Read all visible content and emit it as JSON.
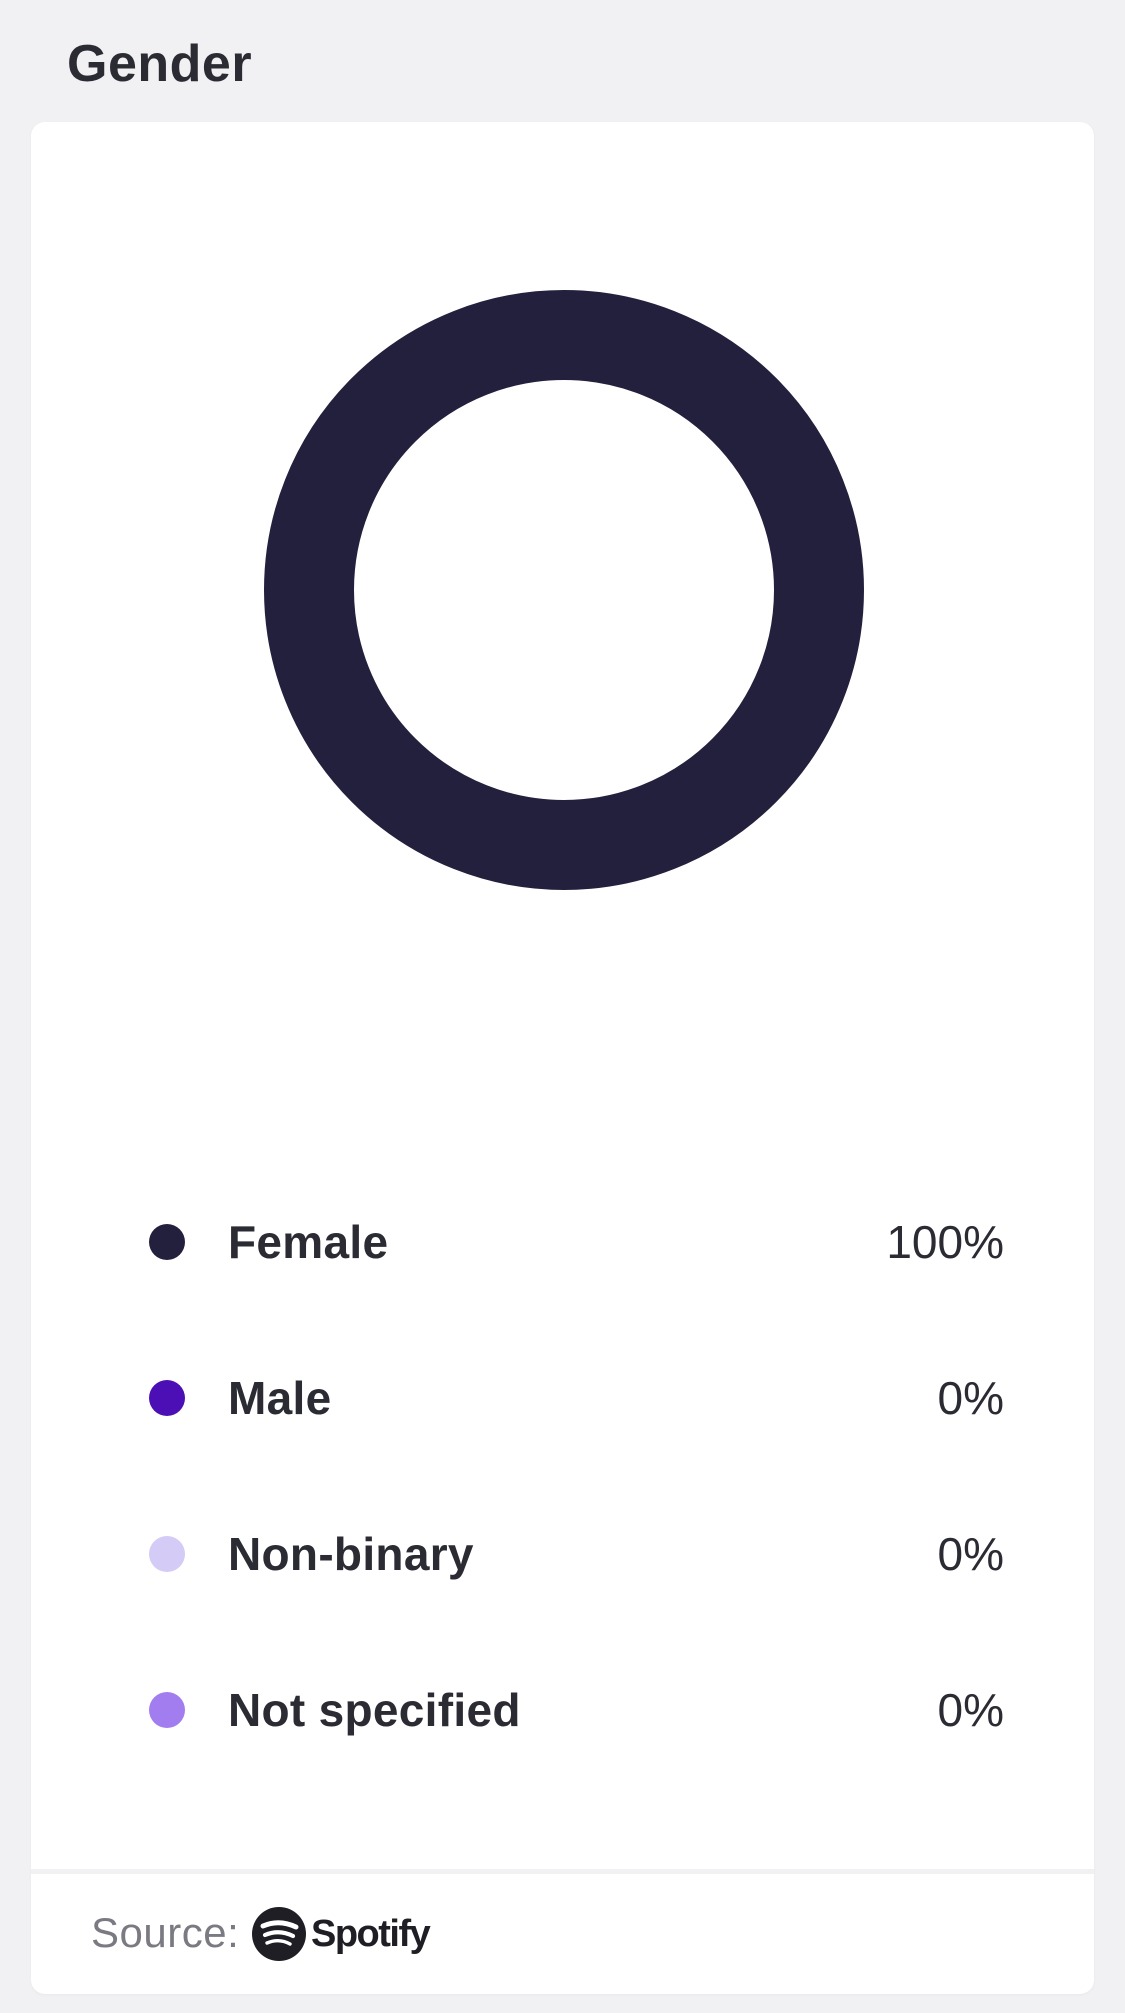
{
  "section": {
    "title": "Gender"
  },
  "chart_data": {
    "type": "pie",
    "categories": [
      "Female",
      "Male",
      "Non-binary",
      "Not specified"
    ],
    "values": [
      100,
      0,
      0,
      0
    ],
    "colors": [
      "#23203d",
      "#4b0fb5",
      "#d4cbf6",
      "#a27df0"
    ]
  },
  "legend": {
    "items": [
      {
        "label": "Female",
        "value": "100%",
        "color": "#23203d"
      },
      {
        "label": "Male",
        "value": "0%",
        "color": "#4b0fb5"
      },
      {
        "label": "Non-binary",
        "value": "0%",
        "color": "#d4cbf6"
      },
      {
        "label": "Not specified",
        "value": "0%",
        "color": "#a27df0"
      }
    ]
  },
  "footer": {
    "source_label": "Source:",
    "brand": "Spotify",
    "brand_icon": "spotify-logo-icon"
  }
}
